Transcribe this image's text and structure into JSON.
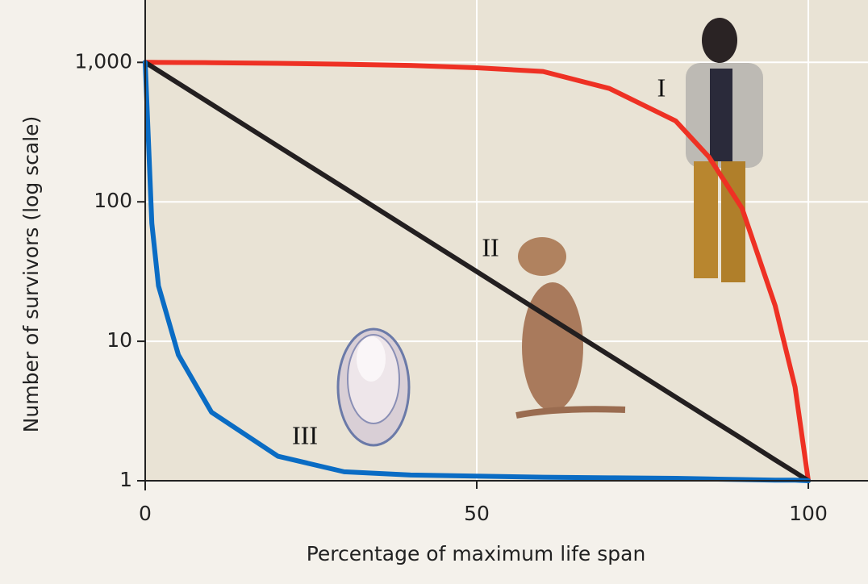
{
  "chart_data": {
    "type": "line",
    "x_label": "Percentage of maximum life span",
    "y_label": "Number of survivors (log scale)",
    "x": [
      0,
      1,
      2,
      5,
      10,
      20,
      30,
      40,
      50,
      60,
      70,
      80,
      85,
      90,
      95,
      98,
      100
    ],
    "series": [
      {
        "name": "I",
        "color": "#ee3124",
        "values": [
          1000,
          1000,
          999,
          997,
          995,
          985,
          970,
          950,
          915,
          860,
          650,
          380,
          210,
          90,
          18,
          4.7,
          1
        ]
      },
      {
        "name": "II",
        "color": "#231f20",
        "values": [
          1000,
          933,
          871,
          708,
          501,
          251,
          126,
          63.1,
          31.6,
          15.8,
          7.94,
          3.98,
          2.82,
          2.0,
          1.41,
          1.15,
          1
        ]
      },
      {
        "name": "III",
        "color": "#0a6cc4",
        "values": [
          1000,
          70,
          25,
          8,
          3.1,
          1.5,
          1.16,
          1.1,
          1.08,
          1.06,
          1.05,
          1.04,
          1.03,
          1.02,
          1.01,
          1.01,
          1
        ]
      }
    ],
    "xlim": [
      0,
      109
    ],
    "ylim": [
      1,
      2800
    ],
    "xticks": [
      0,
      50,
      100
    ],
    "yticks": [
      1,
      10,
      100,
      {
        "value": 1000,
        "label": "1,000"
      }
    ],
    "log_y": true,
    "grid": true
  }
}
